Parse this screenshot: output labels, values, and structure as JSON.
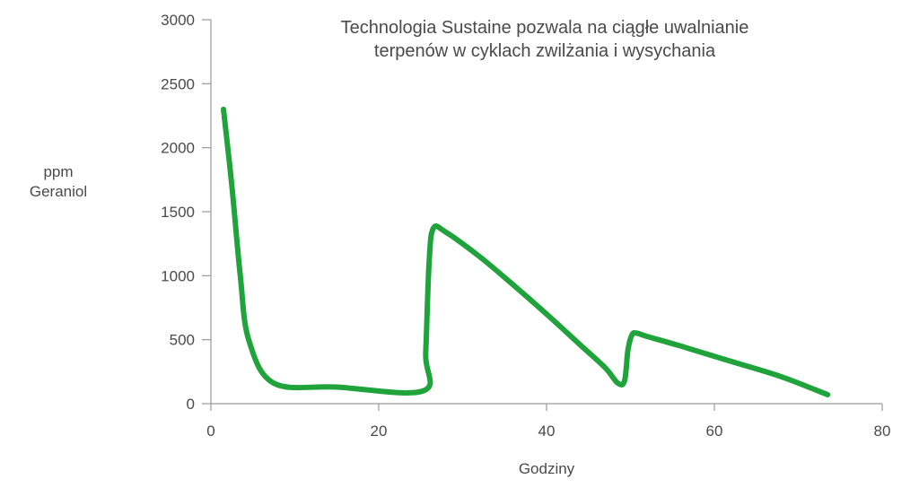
{
  "chart_data": {
    "type": "line",
    "title": [
      "Technologia Sustaine pozwala na ciągłe uwalnianie",
      "terpenów w cyklach zwilżania i wysychania"
    ],
    "xlabel": "Godziny",
    "ylabel": [
      "ppm",
      "Geraniol"
    ],
    "xlim": [
      0,
      80
    ],
    "ylim": [
      0,
      3000
    ],
    "xticks": [
      0,
      20,
      40,
      60,
      80
    ],
    "xtick_labels": [
      "0",
      "20",
      "40",
      "60",
      "80"
    ],
    "yticks": [
      0,
      500,
      1000,
      1500,
      2000,
      2500,
      3000
    ],
    "ytick_labels": [
      "0",
      "500",
      "1000",
      "1500",
      "2000",
      "2500",
      "3000"
    ],
    "grid": false,
    "series": [
      {
        "color": "#1fa33a",
        "x": [
          1.5,
          2.5,
          3.5,
          4.5,
          7.5,
          15,
          25.3,
          25.6,
          26.0,
          26.5,
          28,
          32,
          36,
          40,
          44,
          47,
          48.5,
          49.3,
          49.7,
          50.2,
          50.8,
          52,
          56,
          62,
          68,
          73.5
        ],
        "y": [
          2300,
          1700,
          1000,
          500,
          160,
          130,
          100,
          400,
          1100,
          1370,
          1340,
          1150,
          930,
          700,
          460,
          280,
          160,
          180,
          420,
          540,
          550,
          525,
          450,
          330,
          210,
          70
        ]
      }
    ]
  }
}
